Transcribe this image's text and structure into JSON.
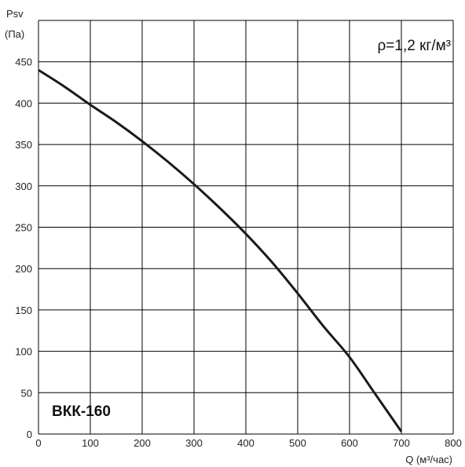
{
  "chart_data": {
    "type": "line",
    "model_label": "ВКК-160",
    "annotation": "ρ=1,2 кг/м³",
    "ylabel_line1": "Psv",
    "ylabel_line2": "(Па)",
    "xlabel": "Q (м³/час)",
    "xlim": [
      0,
      800
    ],
    "ylim": [
      0,
      500
    ],
    "x_ticks": [
      0,
      100,
      200,
      300,
      400,
      500,
      600,
      700,
      800
    ],
    "y_ticks": [
      0,
      50,
      100,
      150,
      200,
      250,
      300,
      350,
      400,
      450
    ],
    "grid": true,
    "series": [
      {
        "x": [
          0,
          50,
          100,
          150,
          200,
          250,
          300,
          350,
          400,
          450,
          500,
          550,
          600,
          650,
          700
        ],
        "y": [
          440,
          420,
          398,
          377,
          354,
          329,
          302,
          273,
          242,
          208,
          170,
          130,
          93,
          48,
          3
        ]
      }
    ]
  },
  "colors": {
    "grid": "#000000",
    "curve": "#1a1a1a",
    "text": "#222222"
  }
}
